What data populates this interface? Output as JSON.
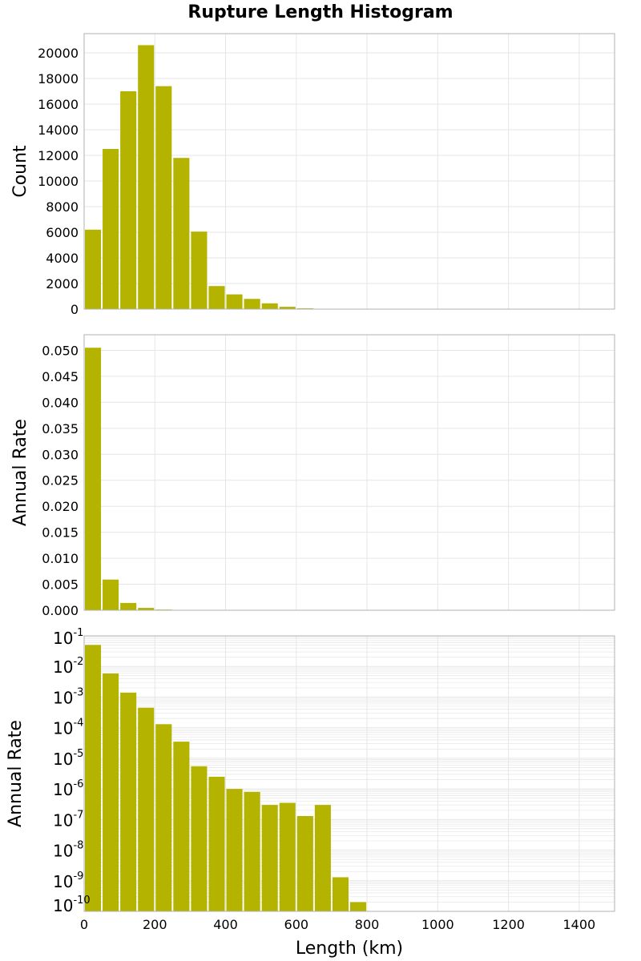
{
  "title": "Rupture Length Histogram",
  "colors": {
    "bar": "#b3b300",
    "grid": "#e6e6e6",
    "frame": "#b0b0b0",
    "background": "#ffffff"
  },
  "chart_data": [
    {
      "type": "bar",
      "panel": "count",
      "ylabel": "Count",
      "xlabel": "",
      "bin_width": 50,
      "x": [
        25,
        75,
        125,
        175,
        225,
        275,
        325,
        375,
        425,
        475,
        525,
        575,
        625,
        675,
        725,
        775
      ],
      "values": [
        6200,
        12500,
        17000,
        20600,
        17400,
        11800,
        6050,
        1800,
        1150,
        800,
        450,
        180,
        60,
        20,
        5,
        1
      ],
      "xlim": [
        0,
        1500
      ],
      "ylim": [
        0,
        21500
      ],
      "yticks": [
        0,
        2000,
        4000,
        6000,
        8000,
        10000,
        12000,
        14000,
        16000,
        18000,
        20000
      ],
      "xticks": [
        0,
        200,
        400,
        600,
        800,
        1000,
        1200,
        1400
      ],
      "scale": "linear",
      "grid": true
    },
    {
      "type": "bar",
      "panel": "rate-linear",
      "ylabel": "Annual Rate",
      "xlabel": "",
      "bin_width": 50,
      "x": [
        25,
        75,
        125,
        175,
        225,
        275,
        325,
        375,
        425,
        475,
        525,
        575,
        625,
        675,
        725,
        775
      ],
      "values": [
        0.0505,
        0.0059,
        0.0014,
        0.00045,
        0.00013,
        3.5e-05,
        5.5e-06,
        2.5e-06,
        1e-06,
        8e-07,
        3e-07,
        3.5e-07,
        1.3e-07,
        3e-07,
        1.3e-09,
        2e-10
      ],
      "xlim": [
        0,
        1500
      ],
      "ylim": [
        0,
        0.053
      ],
      "ytick_labels": [
        "0.000",
        "0.005",
        "0.010",
        "0.015",
        "0.020",
        "0.025",
        "0.030",
        "0.035",
        "0.040",
        "0.045",
        "0.050"
      ],
      "yticks": [
        0,
        0.005,
        0.01,
        0.015,
        0.02,
        0.025,
        0.03,
        0.035,
        0.04,
        0.045,
        0.05
      ],
      "xticks": [
        0,
        200,
        400,
        600,
        800,
        1000,
        1200,
        1400
      ],
      "scale": "linear",
      "grid": true
    },
    {
      "type": "bar",
      "panel": "rate-log",
      "ylabel": "Annual Rate",
      "xlabel": "Length (km)",
      "bin_width": 50,
      "x": [
        25,
        75,
        125,
        175,
        225,
        275,
        325,
        375,
        425,
        475,
        525,
        575,
        625,
        675,
        725,
        775
      ],
      "values": [
        0.0505,
        0.0059,
        0.0014,
        0.00045,
        0.00013,
        3.5e-05,
        5.5e-06,
        2.5e-06,
        1e-06,
        8e-07,
        3e-07,
        3.5e-07,
        1.3e-07,
        3e-07,
        1.3e-09,
        2e-10
      ],
      "xlim": [
        0,
        1500
      ],
      "ylim_exponents": [
        -10,
        -1
      ],
      "ytick_base": "10",
      "ytick_exponents": [
        "-10",
        "-9",
        "-8",
        "-7",
        "-6",
        "-5",
        "-4",
        "-3",
        "-2",
        "-1"
      ],
      "xticks": [
        0,
        200,
        400,
        600,
        800,
        1000,
        1200,
        1400
      ],
      "scale": "log",
      "grid": true
    }
  ]
}
